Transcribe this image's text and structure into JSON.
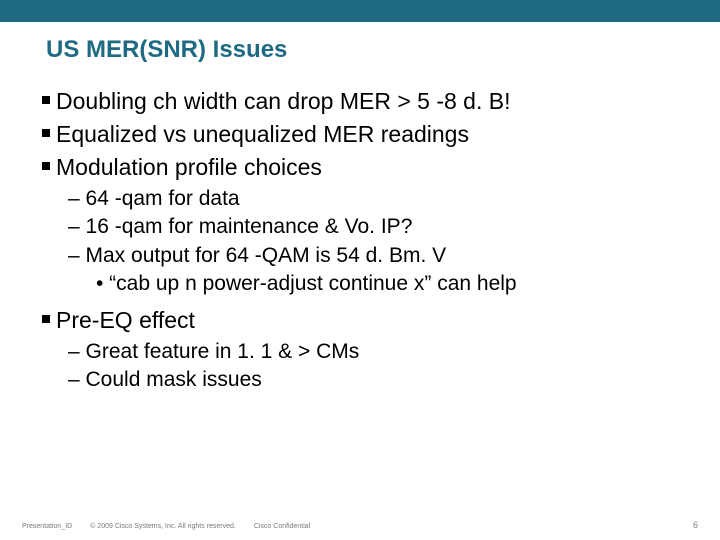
{
  "colors": {
    "accent": "#1e6a82",
    "text": "#000000",
    "footer": "#7a7a7a",
    "background": "#ffffff"
  },
  "title": "US MER(SNR) Issues",
  "bullets": {
    "b1": "Doubling ch width can drop MER > 5 -8 d. B!",
    "b2": "Equalized vs unequalized MER readings",
    "b3": "Modulation profile choices",
    "b3_s1": "– 64 -qam for data",
    "b3_s2": "– 16 -qam for maintenance & Vo. IP?",
    "b3_s3": "– Max output for 64 -QAM is 54 d. Bm. V",
    "b3_s3_a": "• “cab up n power-adjust continue x” can help",
    "b4": "Pre-EQ effect",
    "b4_s1": "– Great feature in 1. 1 & > CMs",
    "b4_s2": "– Could mask issues"
  },
  "footer": {
    "left": "Presentation_ID",
    "mid": "© 2009 Cisco Systems, Inc. All rights reserved.",
    "right": "Cisco Confidential"
  },
  "page_number": "6"
}
